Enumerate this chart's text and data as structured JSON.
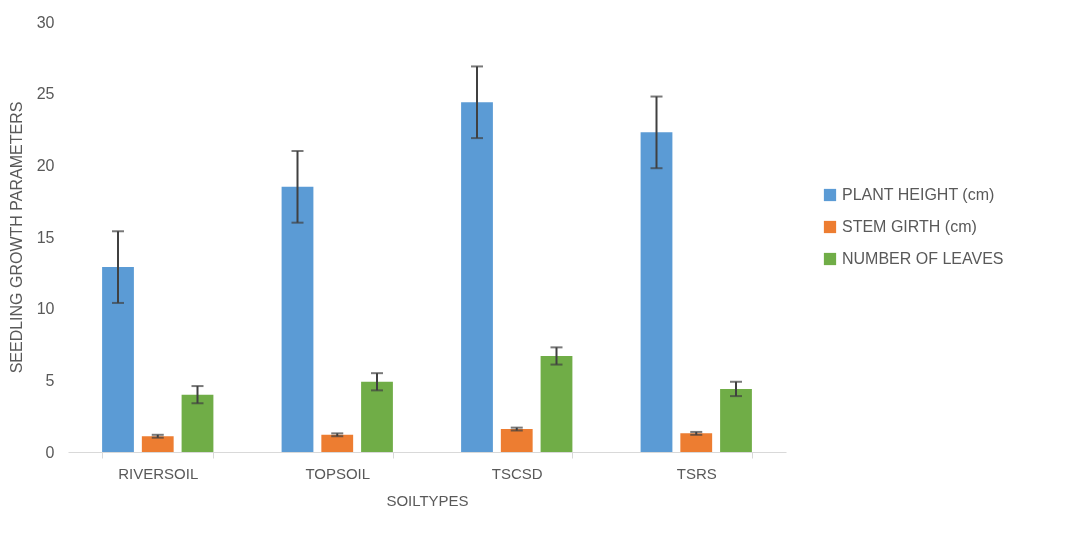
{
  "chart_data": {
    "type": "bar",
    "xlabel": "SOILTYPES",
    "ylabel": "SEEDLING GROWTH PARAMETERS",
    "categories": [
      "RIVERSOIL",
      "TOPSOIL",
      "TSCSD",
      "TSRS"
    ],
    "series": [
      {
        "name": "PLANT HEIGHT (cm)",
        "color": "#5b9bd5",
        "values": [
          12.9,
          18.5,
          24.4,
          22.3
        ],
        "errors": [
          2.5,
          2.5,
          2.5,
          2.5
        ]
      },
      {
        "name": "STEM GIRTH (cm)",
        "color": "#ed7d31",
        "values": [
          1.1,
          1.2,
          1.6,
          1.3
        ],
        "errors": [
          0.1,
          0.1,
          0.1,
          0.1
        ]
      },
      {
        "name": "NUMBER OF LEAVES",
        "color": "#70ad47",
        "values": [
          4.0,
          4.9,
          6.7,
          4.4
        ],
        "errors": [
          0.6,
          0.6,
          0.6,
          0.5
        ]
      }
    ],
    "ylim": [
      0,
      30
    ],
    "yticks": [
      0,
      5,
      10,
      15,
      20,
      25,
      30
    ],
    "grid": false,
    "legend": "right"
  }
}
